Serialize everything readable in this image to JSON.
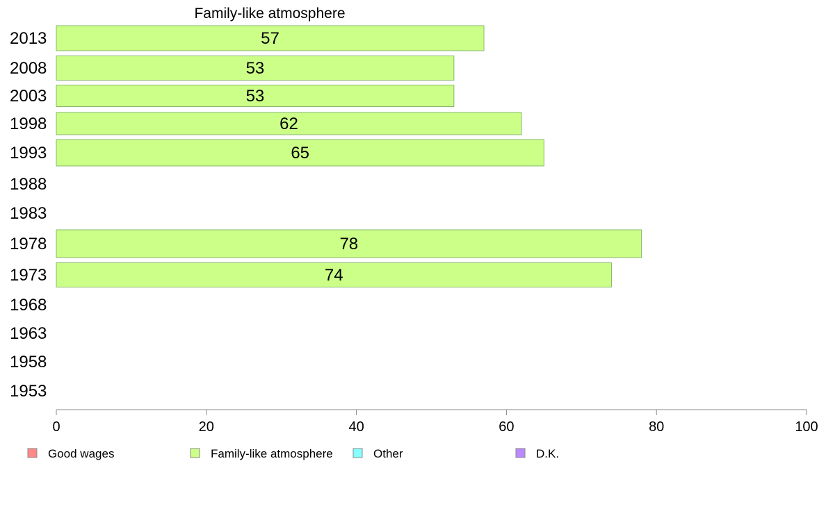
{
  "chart_data": {
    "type": "bar",
    "orientation": "horizontal",
    "title": "Family-like atmosphere",
    "categories": [
      "2013",
      "2008",
      "2003",
      "1998",
      "1993",
      "1988",
      "1983",
      "1978",
      "1973",
      "1968",
      "1963",
      "1958",
      "1953"
    ],
    "series": [
      {
        "name": "Family-like atmosphere",
        "color": "#ccff88",
        "values": [
          57,
          53,
          53,
          62,
          65,
          null,
          null,
          78,
          74,
          null,
          null,
          null,
          null
        ],
        "labels": [
          "57",
          "53",
          "53",
          "62",
          "65",
          "",
          "",
          "78",
          "74",
          "",
          "",
          "",
          ""
        ]
      }
    ],
    "xlim": [
      0,
      100
    ],
    "xticks": [
      0,
      20,
      40,
      60,
      80,
      100
    ],
    "grid": false,
    "legend": {
      "placement": "bottom",
      "entries": [
        {
          "label": "Good wages",
          "color": "#ff8888"
        },
        {
          "label": "Family-like atmosphere",
          "color": "#ccff88"
        },
        {
          "label": "Other",
          "color": "#88ffff"
        },
        {
          "label": "D.K.",
          "color": "#bb88ff"
        }
      ]
    }
  }
}
